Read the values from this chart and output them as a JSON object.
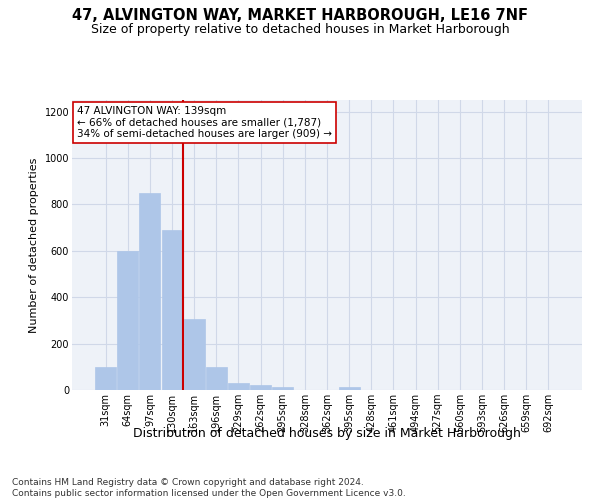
{
  "title": "47, ALVINGTON WAY, MARKET HARBOROUGH, LE16 7NF",
  "subtitle": "Size of property relative to detached houses in Market Harborough",
  "xlabel": "Distribution of detached houses by size in Market Harborough",
  "ylabel": "Number of detached properties",
  "bin_labels": [
    "31sqm",
    "64sqm",
    "97sqm",
    "130sqm",
    "163sqm",
    "196sqm",
    "229sqm",
    "262sqm",
    "295sqm",
    "328sqm",
    "362sqm",
    "395sqm",
    "428sqm",
    "461sqm",
    "494sqm",
    "527sqm",
    "560sqm",
    "593sqm",
    "626sqm",
    "659sqm",
    "692sqm"
  ],
  "bar_values": [
    100,
    600,
    850,
    690,
    305,
    100,
    30,
    22,
    12,
    0,
    0,
    15,
    0,
    0,
    0,
    0,
    0,
    0,
    0,
    0,
    0
  ],
  "bar_color": "#aec6e8",
  "bar_edgecolor": "#aec6e8",
  "vline_color": "#cc0000",
  "annotation_text": "47 ALVINGTON WAY: 139sqm\n← 66% of detached houses are smaller (1,787)\n34% of semi-detached houses are larger (909) →",
  "annotation_box_color": "#ffffff",
  "annotation_box_edgecolor": "#cc0000",
  "ylim": [
    0,
    1250
  ],
  "yticks": [
    0,
    200,
    400,
    600,
    800,
    1000,
    1200
  ],
  "grid_color": "#d0d8e8",
  "bg_color": "#eef2f8",
  "footer": "Contains HM Land Registry data © Crown copyright and database right 2024.\nContains public sector information licensed under the Open Government Licence v3.0.",
  "title_fontsize": 10.5,
  "subtitle_fontsize": 9,
  "xlabel_fontsize": 9,
  "ylabel_fontsize": 8,
  "footer_fontsize": 6.5,
  "tick_fontsize": 7,
  "annotation_fontsize": 7.5
}
